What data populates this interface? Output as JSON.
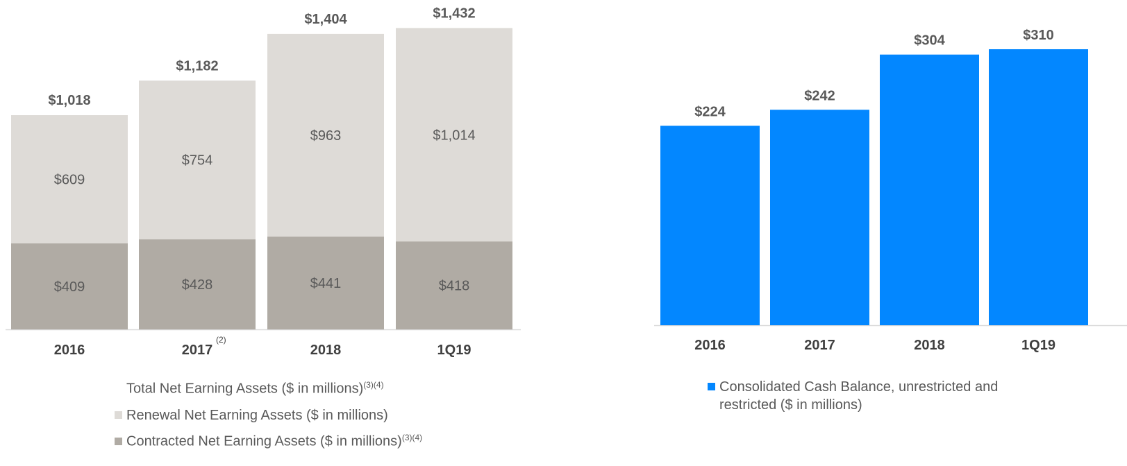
{
  "chart_data": [
    {
      "type": "bar",
      "stacked": true,
      "categories": [
        "2016",
        "2017",
        "2018",
        "1Q19"
      ],
      "category_superscripts": [
        "",
        "(2)",
        "",
        ""
      ],
      "totals": [
        "$1,018",
        "$1,182",
        "$1,404",
        "$1,432"
      ],
      "total_values": [
        1018,
        1182,
        1404,
        1432
      ],
      "series": [
        {
          "name": "Contracted Net Earning Assets ($ in millions)",
          "name_sup": "(3)(4)",
          "color": "#b0aba4",
          "values": [
            409,
            428,
            441,
            418
          ],
          "labels": [
            "$409",
            "$428",
            "$441",
            "$418"
          ]
        },
        {
          "name": "Renewal Net Earning Assets ($ in millions)",
          "name_sup": "",
          "color": "#dedbd7",
          "values": [
            609,
            754,
            963,
            1014
          ],
          "labels": [
            "$609",
            "$754",
            "$963",
            "$1,014"
          ]
        }
      ],
      "legend_title": "Total Net Earning Assets ($ in millions)",
      "legend_title_sup": "(3)(4)",
      "ylim": [
        0,
        1500
      ],
      "legend_position": "bottom"
    },
    {
      "type": "bar",
      "categories": [
        "2016",
        "2017",
        "2018",
        "1Q19"
      ],
      "series": [
        {
          "name": "Consolidated Cash Balance, unrestricted and restricted ($ in millions)",
          "color": "#0387ff",
          "values": [
            224,
            242,
            304,
            310
          ],
          "labels": [
            "$224",
            "$242",
            "$304",
            "$310"
          ]
        }
      ],
      "legend_line1": "Consolidated Cash Balance, unrestricted and",
      "legend_line2": "restricted ($ in millions)",
      "ylim": [
        0,
        310
      ],
      "legend_position": "bottom"
    }
  ]
}
